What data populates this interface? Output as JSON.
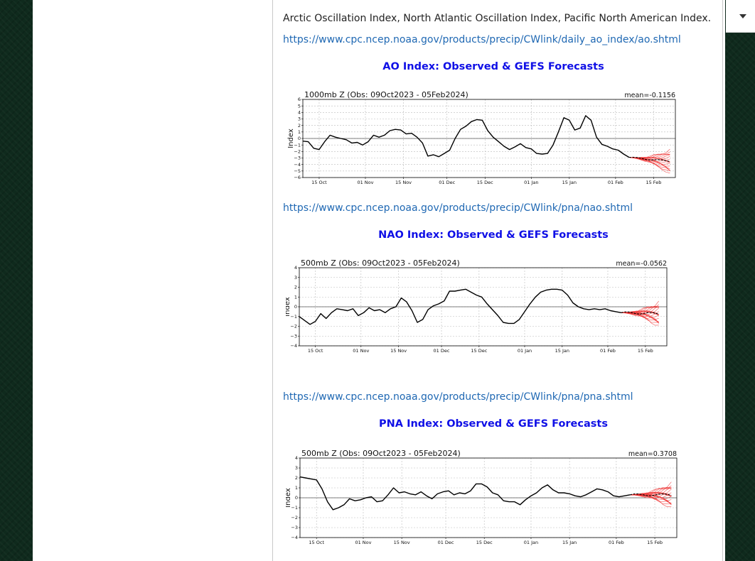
{
  "post": {
    "intro_text": "Arctic Oscillation Index, North Atlantic Oscillation Index, Pacific North American Index.",
    "ao_link": "https://www.cpc.ncep.noaa.gov/products/precip/CWlink/daily_ao_index/ao.shtml",
    "nao_link": "https://www.cpc.ncep.noaa.gov/products/precip/CWlink/pna/nao.shtml",
    "pna_link": "https://www.cpc.ncep.noaa.gov/products/precip/CWlink/pna/pna.shtml"
  },
  "colors": {
    "link": "#1f68b3",
    "chart_title": "#1010e6",
    "forecast": "#e33",
    "observed": "#000000"
  },
  "chart_data": [
    {
      "type": "line",
      "title": "AO Index: Observed & GEFS Forecasts",
      "subtitle": "1000mb Z (Obs: 09Oct2023 - 05Feb2024)",
      "mean_label": "mean=-0.1156",
      "ylabel": "Index",
      "ylim": [
        -6,
        6
      ],
      "yticks": [
        -6,
        -5,
        -4,
        -3,
        -2,
        -1,
        0,
        1,
        2,
        3,
        4,
        5,
        6
      ],
      "xticks": [
        "15 Oct",
        "01 Nov",
        "15 Nov",
        "01 Dec",
        "15 Dec",
        "01 Jan",
        "15 Jan",
        "01 Feb",
        "15 Feb"
      ],
      "grid": true,
      "observed": {
        "days": [
          0,
          2,
          4,
          6,
          8,
          10,
          12,
          14,
          16,
          18,
          20,
          22,
          24,
          26,
          28,
          30,
          32,
          34,
          36,
          38,
          40,
          42,
          44,
          46,
          48,
          50,
          52,
          54,
          56,
          58,
          60,
          62,
          64,
          66,
          68,
          70,
          72,
          74,
          76,
          78,
          80,
          82,
          84,
          86,
          88,
          90,
          92,
          94,
          96,
          98,
          100,
          102,
          104,
          106,
          108,
          110,
          112,
          114,
          116,
          118,
          120
        ],
        "values": [
          -0.4,
          -0.5,
          -1.5,
          -1.7,
          -0.5,
          0.5,
          0.2,
          0,
          -0.2,
          -0.7,
          -0.6,
          -1.0,
          -0.5,
          0.5,
          0.2,
          0.5,
          1.2,
          1.4,
          1.3,
          0.7,
          0.8,
          0.2,
          -0.7,
          -2.7,
          -2.5,
          -2.8,
          -2.3,
          -1.8,
          0,
          1.4,
          1.9,
          2.6,
          2.9,
          2.8,
          1.2,
          0.2,
          -0.5,
          -1.2,
          -1.7,
          -1.3,
          -0.8,
          -1.4,
          -1.6,
          -2.3,
          -2.4,
          -2.3,
          -1.0,
          1.0,
          3.2,
          2.8,
          1.3,
          1.6,
          3.5,
          2.8,
          0.2,
          -0.9,
          -1.2,
          -1.6,
          -1.8,
          -2.4,
          -2.9
        ]
      },
      "forecast_start_day": 120,
      "forecast_end_day": 135,
      "forecast_mean_end": -3.5
    },
    {
      "type": "line",
      "title": "NAO Index: Observed & GEFS Forecasts",
      "subtitle": "500mb Z (Obs: 09Oct2023 - 05Feb2024)",
      "mean_label": "mean=-0.0562",
      "ylabel": "Index",
      "ylim": [
        -4,
        4
      ],
      "yticks": [
        -4,
        -3,
        -2,
        -1,
        0,
        1,
        2,
        3,
        4
      ],
      "xticks": [
        "15 Oct",
        "01 Nov",
        "15 Nov",
        "01 Dec",
        "15 Dec",
        "01 Jan",
        "15 Jan",
        "01 Feb",
        "15 Feb"
      ],
      "grid": true,
      "observed": {
        "days": [
          0,
          2,
          4,
          6,
          8,
          10,
          12,
          14,
          16,
          18,
          20,
          22,
          24,
          26,
          28,
          30,
          32,
          34,
          36,
          38,
          40,
          42,
          44,
          46,
          48,
          50,
          52,
          54,
          56,
          58,
          60,
          62,
          64,
          66,
          68,
          70,
          72,
          74,
          76,
          78,
          80,
          82,
          84,
          86,
          88,
          90,
          92,
          94,
          96,
          98,
          100,
          102,
          104,
          106,
          108,
          110,
          112,
          114,
          116,
          118,
          120
        ],
        "values": [
          -1.0,
          -1.4,
          -1.8,
          -1.5,
          -0.7,
          -1.2,
          -0.6,
          -0.2,
          -0.3,
          -0.4,
          -0.2,
          -0.9,
          -0.6,
          -0.1,
          -0.4,
          -0.3,
          -0.6,
          -0.2,
          0,
          0.9,
          0.5,
          -0.4,
          -1.6,
          -1.3,
          -0.3,
          0.1,
          0.3,
          0.6,
          1.6,
          1.6,
          1.7,
          1.8,
          1.5,
          1.2,
          1.0,
          0.3,
          -0.3,
          -0.9,
          -1.6,
          -1.7,
          -1.7,
          -1.3,
          -0.5,
          0.3,
          1.0,
          1.5,
          1.7,
          1.8,
          1.8,
          1.7,
          1.2,
          0.4,
          0.0,
          -0.2,
          -0.3,
          -0.2,
          -0.3,
          -0.2,
          -0.4,
          -0.5,
          -0.6
        ]
      },
      "forecast_start_day": 120,
      "forecast_end_day": 134,
      "forecast_mean_end": -0.7
    },
    {
      "type": "line",
      "title": "PNA Index: Observed & GEFS Forecasts",
      "subtitle": "500mb Z (Obs: 09Oct2023 - 05Feb2024)",
      "mean_label": "mean=0.3708",
      "ylabel": "Index",
      "ylim": [
        -4,
        4
      ],
      "yticks": [
        -4,
        -3,
        -2,
        -1,
        0,
        1,
        2,
        3,
        4
      ],
      "xticks": [
        "15 Oct",
        "01 Nov",
        "15 Nov",
        "01 Dec",
        "15 Dec",
        "01 Jan",
        "15 Jan",
        "01 Feb",
        "15 Feb"
      ],
      "grid": true,
      "observed": {
        "days": [
          0,
          2,
          4,
          6,
          8,
          10,
          12,
          14,
          16,
          18,
          20,
          22,
          24,
          26,
          28,
          30,
          32,
          34,
          36,
          38,
          40,
          42,
          44,
          46,
          48,
          50,
          52,
          54,
          56,
          58,
          60,
          62,
          64,
          66,
          68,
          70,
          72,
          74,
          76,
          78,
          80,
          82,
          84,
          86,
          88,
          90,
          92,
          94,
          96,
          98,
          100,
          102,
          104,
          106,
          108,
          110,
          112,
          114,
          116,
          118,
          120
        ],
        "values": [
          2.1,
          2.0,
          1.9,
          1.8,
          0.9,
          -0.4,
          -1.2,
          -1.0,
          -0.7,
          -0.1,
          -0.3,
          -0.2,
          0,
          0.1,
          -0.4,
          -0.3,
          0.3,
          1.0,
          0.5,
          0.6,
          0.4,
          0.3,
          0.6,
          0.2,
          -0.1,
          0.4,
          0.6,
          0.7,
          0.3,
          0.5,
          0.4,
          0.7,
          1.4,
          1.4,
          1.1,
          0.5,
          0.3,
          -0.3,
          -0.4,
          -0.4,
          -0.7,
          -0.2,
          0.2,
          0.5,
          1.0,
          1.3,
          0.8,
          0.5,
          0.5,
          0.4,
          0.2,
          0.1,
          0.3,
          0.6,
          0.9,
          0.8,
          0.6,
          0.2,
          0.1,
          0.2,
          0.3
        ]
      },
      "forecast_start_day": 120,
      "forecast_end_day": 135,
      "forecast_mean_end": 0.3
    }
  ]
}
